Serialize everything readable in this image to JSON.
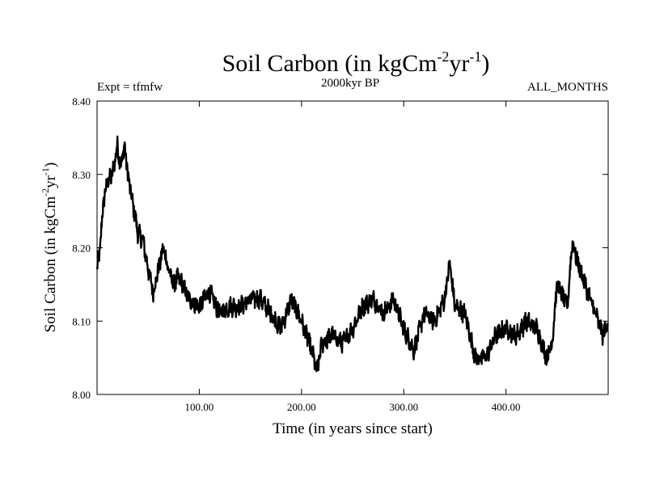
{
  "chart_data": {
    "type": "line",
    "title": "Soil Carbon (in kgCm",
    "title_sup1": "-2",
    "title_mid": "yr",
    "title_sup2": "-1",
    "title_end": ")",
    "subtitle_left": "Expt = tfmfw",
    "subtitle_center": "2000kyr BP",
    "subtitle_right": "ALL_MONTHS",
    "xlabel": "Time (in years since start)",
    "ylabel": "Soil Carbon (in kgCm",
    "ylabel_sup1": "-2",
    "ylabel_mid": "yr",
    "ylabel_sup2": "-1",
    "ylabel_end": ")",
    "xlim": [
      0,
      500
    ],
    "ylim": [
      8.0,
      8.4
    ],
    "xticks": [
      100,
      200,
      300,
      400
    ],
    "xtick_labels": [
      "100.00",
      "200.00",
      "300.00",
      "400.00"
    ],
    "yticks": [
      8.0,
      8.1,
      8.2,
      8.3,
      8.4
    ],
    "ytick_labels": [
      "8.00",
      "8.10",
      "8.20",
      "8.30",
      "8.40"
    ],
    "line_color": "#000000",
    "series": [
      {
        "x": [
          0,
          3,
          6,
          10,
          15,
          20,
          23,
          27,
          30,
          35,
          40,
          45,
          50,
          55,
          60,
          65,
          70,
          75,
          80,
          90,
          100,
          110,
          120,
          130,
          140,
          150,
          160,
          170,
          180,
          190,
          200,
          210,
          215,
          220,
          230,
          240,
          250,
          260,
          270,
          280,
          290,
          300,
          310,
          320,
          330,
          340,
          345,
          350,
          360,
          370,
          380,
          390,
          400,
          410,
          420,
          430,
          440,
          445,
          450,
          460,
          465,
          470,
          480,
          490,
          495,
          500
        ],
        "y": [
          8.17,
          8.2,
          8.26,
          8.29,
          8.3,
          8.34,
          8.31,
          8.34,
          8.3,
          8.26,
          8.22,
          8.21,
          8.17,
          8.14,
          8.17,
          8.2,
          8.17,
          8.15,
          8.16,
          8.13,
          8.12,
          8.14,
          8.11,
          8.12,
          8.12,
          8.13,
          8.13,
          8.11,
          8.09,
          8.13,
          8.1,
          8.06,
          8.03,
          8.07,
          8.08,
          8.07,
          8.09,
          8.12,
          8.13,
          8.11,
          8.13,
          8.09,
          8.06,
          8.11,
          8.1,
          8.13,
          8.18,
          8.12,
          8.11,
          8.05,
          8.05,
          8.08,
          8.09,
          8.08,
          8.1,
          8.09,
          8.05,
          8.07,
          8.15,
          8.12,
          8.21,
          8.18,
          8.14,
          8.1,
          8.08,
          8.1
        ]
      }
    ]
  }
}
